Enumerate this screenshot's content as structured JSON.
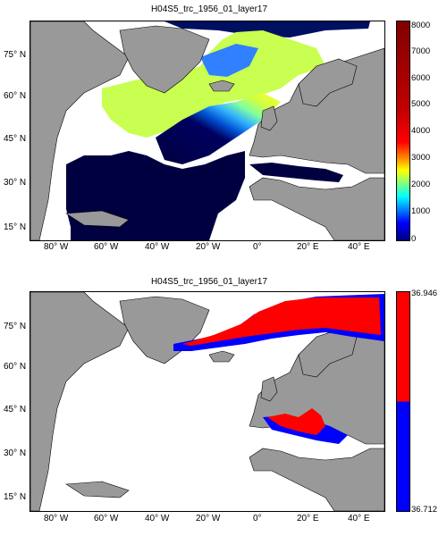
{
  "panels": [
    {
      "title": "H04S5_trc_1956_01_layer17",
      "lat_labels": [
        "75° N",
        "60° N",
        "45° N",
        "30° N",
        "15° N"
      ],
      "lon_labels": [
        "80° W",
        "60° W",
        "40° W",
        "20° W",
        "0°",
        "20° E",
        "40° E"
      ],
      "colorbar": {
        "type": "continuous",
        "min": 0,
        "max": 8000,
        "ticks": [
          "8000",
          "7000",
          "6000",
          "5000",
          "4000",
          "3000",
          "2000",
          "1000",
          "0"
        ],
        "colormap": "jet"
      },
      "colors": {
        "land": "#999999",
        "ocean_deep": "#000040",
        "missing": "#ffffff"
      }
    },
    {
      "title": "H04S5_trc_1956_01_layer17",
      "lat_labels": [
        "75° N",
        "60° N",
        "45° N",
        "30° N",
        "15° N"
      ],
      "lon_labels": [
        "80° W",
        "60° W",
        "40° W",
        "20° W",
        "0°",
        "20° E",
        "40° E"
      ],
      "colorbar": {
        "type": "two-class",
        "top_label": "36.946",
        "bottom_label": "36.712",
        "colors": [
          "#ff0000",
          "#0000ff"
        ]
      },
      "colors": {
        "land": "#999999",
        "high": "#ff0000",
        "low": "#0000ff",
        "missing": "#ffffff"
      }
    }
  ]
}
